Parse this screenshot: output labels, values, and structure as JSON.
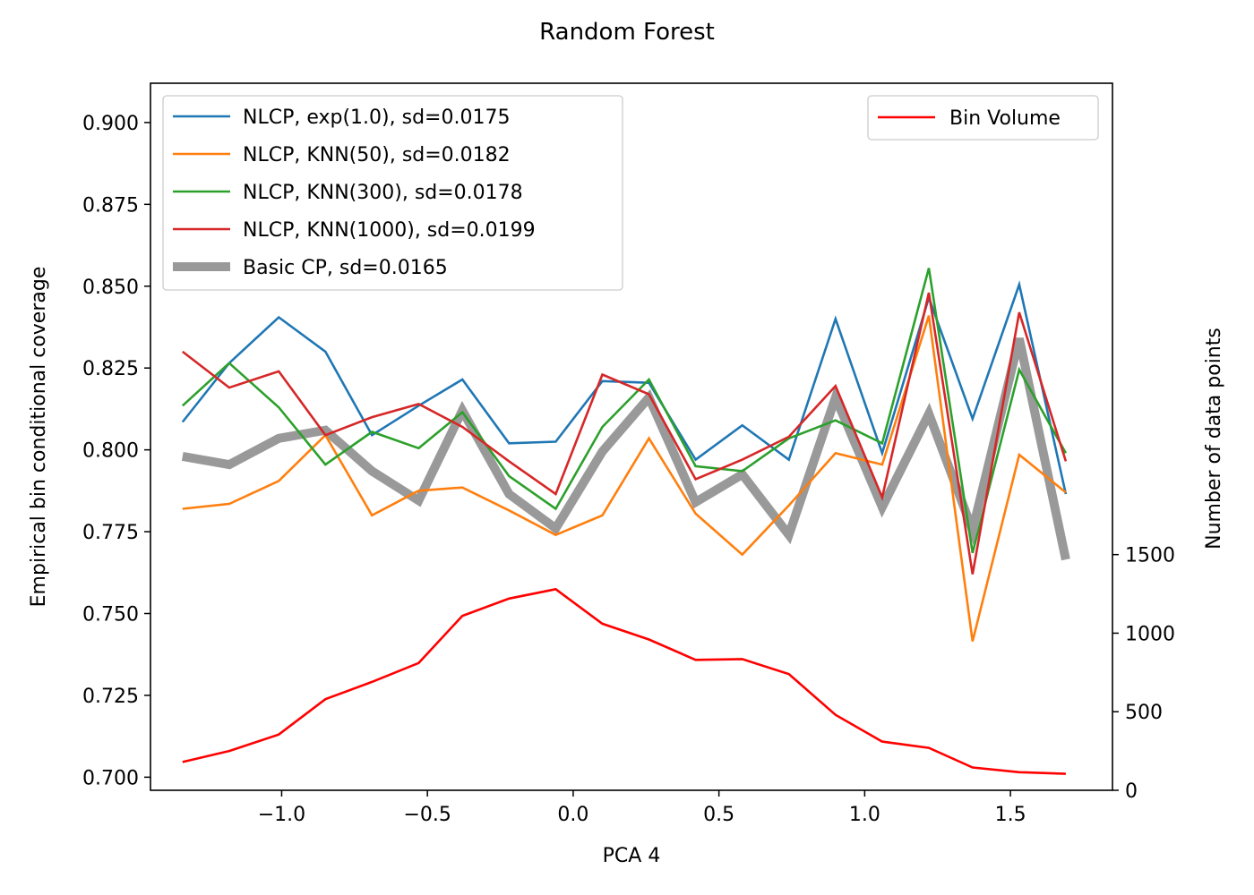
{
  "chart_data": {
    "type": "line",
    "title": "Random Forest",
    "xlabel": "PCA 4",
    "ylabel": "Empirical bin conditional coverage",
    "ylabel_right": "Number of data points",
    "xlim": [
      -1.45,
      1.85
    ],
    "ylim": [
      0.696,
      0.912
    ],
    "ylim_right": [
      0,
      4500
    ],
    "x_ticks": [
      -1.0,
      -0.5,
      0.0,
      0.5,
      1.0,
      1.5
    ],
    "x_tick_labels": [
      "−1.0",
      "−0.5",
      "0.0",
      "0.5",
      "1.0",
      "1.5"
    ],
    "y_ticks": [
      0.7,
      0.725,
      0.75,
      0.775,
      0.8,
      0.825,
      0.85,
      0.875,
      0.9
    ],
    "y_tick_labels": [
      "0.700",
      "0.725",
      "0.750",
      "0.775",
      "0.800",
      "0.825",
      "0.850",
      "0.875",
      "0.900"
    ],
    "y_ticks_right": [
      0,
      500,
      1000,
      1500
    ],
    "y_tick_labels_right": [
      "0",
      "500",
      "1000",
      "1500"
    ],
    "grid": false,
    "legend_left_placement": "upper-left",
    "legend_right_placement": "upper-right",
    "x": [
      -1.34,
      -1.18,
      -1.01,
      -0.85,
      -0.69,
      -0.53,
      -0.38,
      -0.22,
      -0.06,
      0.1,
      0.26,
      0.42,
      0.58,
      0.74,
      0.9,
      1.06,
      1.22,
      1.37,
      1.53,
      1.69
    ],
    "series": [
      {
        "name": "NLCP, exp(1.0), sd=0.0175",
        "color": "#1f77b4",
        "values": [
          0.8085,
          0.8265,
          0.8405,
          0.83,
          0.8045,
          0.8135,
          0.8215,
          0.802,
          0.8025,
          0.821,
          0.8205,
          0.797,
          0.8075,
          0.797,
          0.84,
          0.799,
          0.8465,
          0.8095,
          0.8505,
          0.7865
        ]
      },
      {
        "name": "NLCP, KNN(50), sd=0.0182",
        "color": "#ff7f0e",
        "values": [
          0.782,
          0.7835,
          0.7905,
          0.8045,
          0.78,
          0.7875,
          0.7885,
          0.7815,
          0.774,
          0.78,
          0.8035,
          0.7805,
          0.768,
          0.783,
          0.799,
          0.7955,
          0.841,
          0.7415,
          0.7985,
          0.787
        ]
      },
      {
        "name": "NLCP, KNN(300), sd=0.0178",
        "color": "#2ca02c",
        "values": [
          0.8135,
          0.8265,
          0.813,
          0.7955,
          0.8055,
          0.8005,
          0.8115,
          0.792,
          0.782,
          0.807,
          0.8215,
          0.795,
          0.7935,
          0.8035,
          0.809,
          0.802,
          0.8555,
          0.7685,
          0.8245,
          0.799
        ]
      },
      {
        "name": "NLCP, KNN(1000), sd=0.0199",
        "color": "#d62728",
        "values": [
          0.83,
          0.819,
          0.824,
          0.8045,
          0.81,
          0.814,
          0.807,
          0.7965,
          0.7865,
          0.823,
          0.817,
          0.791,
          0.797,
          0.804,
          0.8195,
          0.7855,
          0.848,
          0.762,
          0.842,
          0.7965
        ]
      },
      {
        "name": "Basic CP, sd=0.0165",
        "color": "#999999",
        "values": [
          0.798,
          0.7955,
          0.8035,
          0.806,
          0.7935,
          0.7845,
          0.812,
          0.7865,
          0.776,
          0.7995,
          0.816,
          0.784,
          0.7925,
          0.774,
          0.816,
          0.7825,
          0.811,
          0.7755,
          0.834,
          0.7665
        ]
      }
    ],
    "right_series": [
      {
        "name": "Bin Volume",
        "color": "#ff0000",
        "values": [
          180,
          250,
          355,
          580,
          690,
          810,
          1110,
          1220,
          1280,
          1060,
          960,
          830,
          835,
          740,
          480,
          310,
          270,
          145,
          115,
          105
        ]
      }
    ]
  }
}
